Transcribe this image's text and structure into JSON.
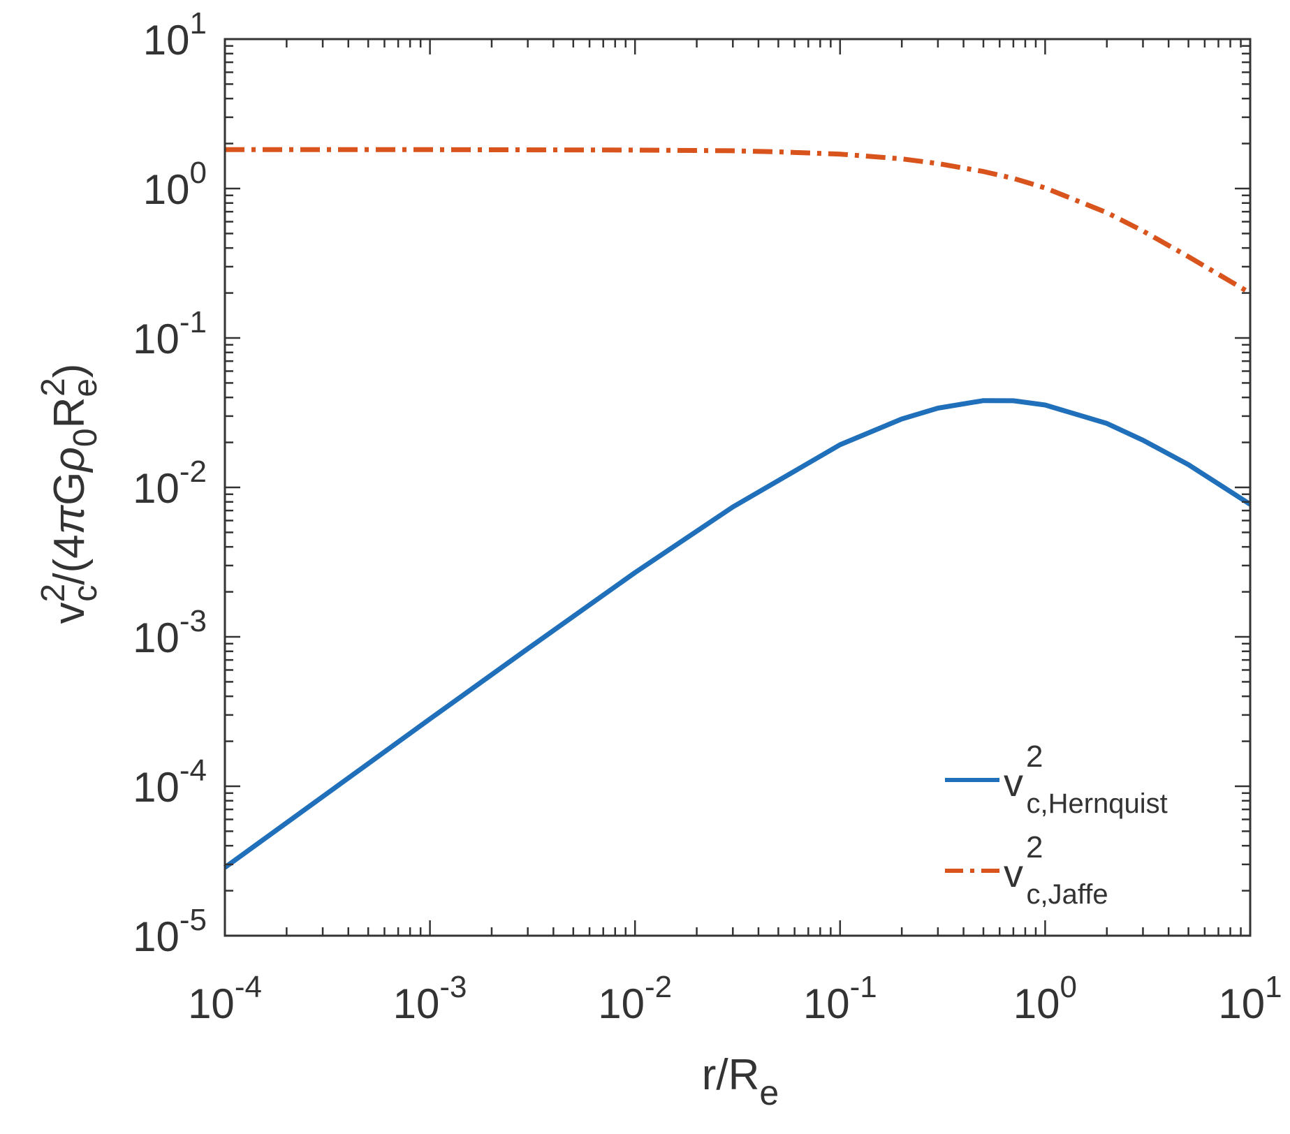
{
  "chart_data": {
    "type": "line",
    "title": "",
    "x_scale": "log",
    "y_scale": "log",
    "xlim": [
      0.0001,
      10
    ],
    "ylim": [
      1e-05,
      10
    ],
    "x_ticks": [
      {
        "base": "10",
        "exp": "-4"
      },
      {
        "base": "10",
        "exp": "-3"
      },
      {
        "base": "10",
        "exp": "-2"
      },
      {
        "base": "10",
        "exp": "-1"
      },
      {
        "base": "10",
        "exp": "0"
      },
      {
        "base": "10",
        "exp": "1"
      }
    ],
    "y_ticks": [
      {
        "base": "10",
        "exp": "-5"
      },
      {
        "base": "10",
        "exp": "-4"
      },
      {
        "base": "10",
        "exp": "-3"
      },
      {
        "base": "10",
        "exp": "-2"
      },
      {
        "base": "10",
        "exp": "-1"
      },
      {
        "base": "10",
        "exp": "0"
      },
      {
        "base": "10",
        "exp": "1"
      }
    ],
    "xlabel": {
      "main": "r/R",
      "sub": "e"
    },
    "ylabel": {
      "v": "v",
      "v_sup": "2",
      "v_sub": "c",
      "mid": "/(4",
      "pi": "π",
      "g": "G",
      "rho": "ρ",
      "rho_sub": "0",
      "r": "R",
      "r_sub": "e",
      "r_sup": "2",
      "close": ")"
    },
    "grid": false,
    "legend_position": "bottom-right",
    "series": [
      {
        "name": {
          "v": "v",
          "sup": "2",
          "sub": "c,Hernquist"
        },
        "color": "#1f6fba",
        "style": "solid",
        "x": [
          0.0001,
          0.0003,
          0.001,
          0.003,
          0.01,
          0.03,
          0.1,
          0.2,
          0.3,
          0.5,
          0.7,
          1,
          2,
          3,
          5,
          10
        ],
        "y": [
          2.86e-05,
          8.53e-05,
          0.000282,
          0.000833,
          0.00269,
          0.0074,
          0.0193,
          0.0287,
          0.0339,
          0.0381,
          0.038,
          0.0356,
          0.0268,
          0.0207,
          0.0142,
          0.0077
        ]
      },
      {
        "name": {
          "v": "v",
          "sup": "2",
          "sub": "c,Jaffe"
        },
        "color": "#d9541d",
        "style": "dashdot",
        "x": [
          0.0001,
          0.001,
          0.01,
          0.03,
          0.05,
          0.1,
          0.2,
          0.3,
          0.5,
          0.7,
          1,
          2,
          3,
          5,
          10
        ],
        "y": [
          1.82,
          1.82,
          1.81,
          1.79,
          1.76,
          1.7,
          1.58,
          1.47,
          1.3,
          1.17,
          1.01,
          0.69,
          0.52,
          0.35,
          0.2
        ]
      }
    ]
  }
}
